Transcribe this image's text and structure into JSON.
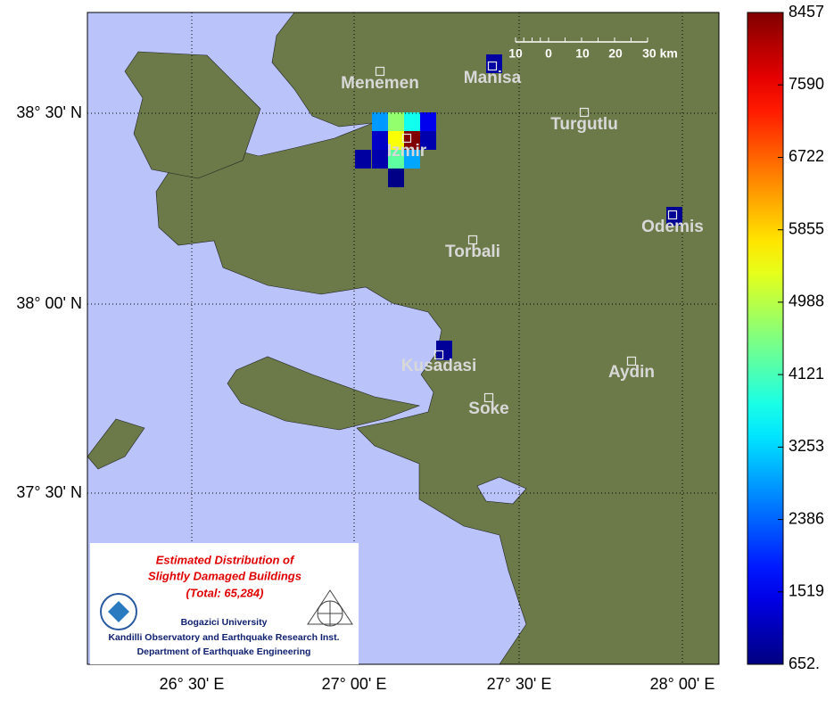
{
  "map": {
    "lon_labels": [
      "26° 30' E",
      "27° 00' E",
      "27° 30' E",
      "28° 00' E"
    ],
    "lat_labels": [
      "38° 30' N",
      "38° 00' N",
      "37° 30' N"
    ],
    "cities": [
      "Menemen",
      "Manisa",
      "Turgutlu",
      "Izmir",
      "Torbali",
      "Odemis",
      "Kusadasi",
      "Aydin",
      "Soke"
    ],
    "scale_bar": [
      "10",
      "0",
      "10",
      "20",
      "30 km"
    ],
    "cells": [
      2800,
      4700,
      3700,
      1500,
      1200,
      5500,
      8457,
      1000,
      900,
      1000,
      4300,
      2900,
      700,
      900,
      800,
      850
    ]
  },
  "colorbar": {
    "lim": [
      652,
      8457
    ],
    "ticks": [
      {
        "value": 652,
        "label": "652."
      },
      1519,
      2386,
      3253,
      4121,
      4988,
      5855,
      6722,
      7590,
      8457
    ]
  },
  "legend": {
    "title_lines": [
      "Estimated Distribution of",
      "Slightly Damaged Buildings",
      "(Total: 65,284)"
    ],
    "org_lines": [
      "Bogazici University",
      "Kandilli Observatory and Earthquake Research Inst.",
      "Department of Earthquake Engineering"
    ]
  }
}
